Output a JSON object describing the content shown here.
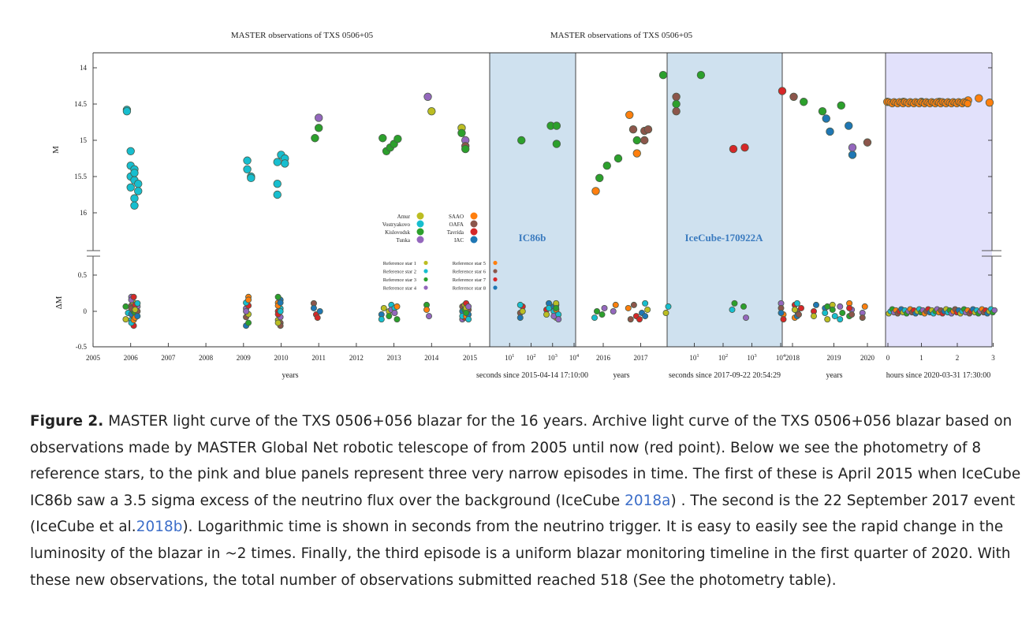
{
  "figure": {
    "title_left": "MASTER observations of TXS 0506+05",
    "title_right": "MASTER observations of TXS 0506+05",
    "ylabel_top": "M",
    "ylabel_bottom": "ΔM",
    "xlabel_years_1": "years",
    "xlabel_seconds_1": "seconds since 2015-04-14 17:10:00",
    "xlabel_years_2": "years",
    "xlabel_seconds_2": "seconds since 2017-09-22 20:54:29",
    "xlabel_years_3": "years",
    "xlabel_hours": "hours since 2020-03-31 17:30:00",
    "band_label_1": "IC86b",
    "band_label_2": "IceCube-170922A",
    "band_colors": {
      "blue": "#cfe1ef",
      "lavender": "#e2e1fb",
      "label": "#3b7bbf"
    },
    "top_y_ticks": [
      "14",
      "14.5",
      "15",
      "15.5",
      "16"
    ],
    "bottom_y_ticks": [
      "0.5",
      "0",
      "-0.5"
    ],
    "x_ticks": [
      "2005",
      "2006",
      "2007",
      "2008",
      "2009",
      "2010",
      "2011",
      "2012",
      "2013",
      "2014",
      "2015",
      "10",
      "1",
      "10",
      "2",
      "10",
      "3",
      "10",
      "4",
      "2016",
      "2017",
      "10",
      "1",
      "10",
      "2",
      "10",
      "3",
      "10",
      "4",
      "2018",
      "2019",
      "2020",
      "0",
      "1",
      "2",
      "3"
    ],
    "legend_observatories": [
      {
        "name": "Amur",
        "color": "#bcbd22"
      },
      {
        "name": "Vostryakovo",
        "color": "#17becf"
      },
      {
        "name": "Kislovodsk",
        "color": "#2ca02c"
      },
      {
        "name": "Tunka",
        "color": "#9467bd"
      },
      {
        "name": "SAAO",
        "color": "#ff7f0e"
      },
      {
        "name": "OAFA",
        "color": "#8c564b"
      },
      {
        "name": "Tavrida",
        "color": "#d62728"
      },
      {
        "name": "IAC",
        "color": "#1f77b4"
      }
    ],
    "legend_reference": [
      {
        "name": "Reference star 1",
        "color": "#bcbd22"
      },
      {
        "name": "Reference star 2",
        "color": "#17becf"
      },
      {
        "name": "Reference star 3",
        "color": "#2ca02c"
      },
      {
        "name": "Reference star 4",
        "color": "#9467bd"
      },
      {
        "name": "Reference star 5",
        "color": "#ff7f0e"
      },
      {
        "name": "Reference star 6",
        "color": "#8c564b"
      },
      {
        "name": "Reference star 7",
        "color": "#d62728"
      },
      {
        "name": "Reference star 8",
        "color": "#1f77b4"
      }
    ]
  },
  "chart_data": {
    "type": "scatter",
    "title": "MASTER observations of TXS 0506+05",
    "ylabel": "M",
    "ylim": [
      16.5,
      13.9
    ],
    "y_inverted": true,
    "light_curve": [
      {
        "x": "2005.9",
        "y": 14.58,
        "obs": "Vostryakovo"
      },
      {
        "x": "2005.9",
        "y": 14.6,
        "obs": "Vostryakovo"
      },
      {
        "x": "2006.0",
        "y": 15.15,
        "obs": "Vostryakovo"
      },
      {
        "x": "2006.0",
        "y": 15.35,
        "obs": "Vostryakovo"
      },
      {
        "x": "2006.0",
        "y": 15.5,
        "obs": "Vostryakovo"
      },
      {
        "x": "2006.0",
        "y": 15.65,
        "obs": "Vostryakovo"
      },
      {
        "x": "2006.1",
        "y": 15.4,
        "obs": "Vostryakovo"
      },
      {
        "x": "2006.1",
        "y": 15.55,
        "obs": "Vostryakovo"
      },
      {
        "x": "2006.1",
        "y": 15.8,
        "obs": "Vostryakovo"
      },
      {
        "x": "2006.1",
        "y": 15.9,
        "obs": "Vostryakovo"
      },
      {
        "x": "2006.1",
        "y": 15.45,
        "obs": "Vostryakovo"
      },
      {
        "x": "2006.2",
        "y": 15.6,
        "obs": "Vostryakovo"
      },
      {
        "x": "2006.2",
        "y": 15.7,
        "obs": "Vostryakovo"
      },
      {
        "x": "2009.1",
        "y": 15.28,
        "obs": "Vostryakovo"
      },
      {
        "x": "2009.1",
        "y": 15.4,
        "obs": "Vostryakovo"
      },
      {
        "x": "2009.2",
        "y": 15.5,
        "obs": "Vostryakovo"
      },
      {
        "x": "2009.2",
        "y": 15.52,
        "obs": "Vostryakovo"
      },
      {
        "x": "2009.9",
        "y": 15.3,
        "obs": "Vostryakovo"
      },
      {
        "x": "2009.9",
        "y": 15.6,
        "obs": "Vostryakovo"
      },
      {
        "x": "2009.9",
        "y": 15.75,
        "obs": "Vostryakovo"
      },
      {
        "x": "2010.0",
        "y": 15.2,
        "obs": "Vostryakovo"
      },
      {
        "x": "2010.1",
        "y": 15.25,
        "obs": "Vostryakovo"
      },
      {
        "x": "2010.1",
        "y": 15.32,
        "obs": "Vostryakovo"
      },
      {
        "x": "2010.9",
        "y": 14.97,
        "obs": "Kislovodsk"
      },
      {
        "x": "2011.0",
        "y": 14.83,
        "obs": "Kislovodsk"
      },
      {
        "x": "2011.0",
        "y": 14.69,
        "obs": "Tunka"
      },
      {
        "x": "2012.7",
        "y": 14.97,
        "obs": "Kislovodsk"
      },
      {
        "x": "2012.8",
        "y": 15.15,
        "obs": "Kislovodsk"
      },
      {
        "x": "2012.9",
        "y": 15.1,
        "obs": "Kislovodsk"
      },
      {
        "x": "2013.0",
        "y": 15.05,
        "obs": "Kislovodsk"
      },
      {
        "x": "2013.1",
        "y": 14.98,
        "obs": "Kislovodsk"
      },
      {
        "x": "2013.9",
        "y": 14.4,
        "obs": "Tunka"
      },
      {
        "x": "2014.0",
        "y": 14.6,
        "obs": "Amur"
      },
      {
        "x": "2014.8",
        "y": 14.83,
        "obs": "Amur"
      },
      {
        "x": "2014.8",
        "y": 14.9,
        "obs": "Kislovodsk"
      },
      {
        "x": "2014.9",
        "y": 15.0,
        "obs": "Tunka"
      },
      {
        "x": "2014.9",
        "y": 15.08,
        "obs": "OAFA"
      },
      {
        "x": "2014.9",
        "y": 15.12,
        "obs": "Kislovodsk"
      },
      {
        "x": "2015.8",
        "y": 15.7,
        "obs": "SAAO"
      },
      {
        "x": "2015.9",
        "y": 15.52,
        "obs": "Kislovodsk"
      },
      {
        "x": "2016.1",
        "y": 15.35,
        "obs": "Kislovodsk"
      },
      {
        "x": "2016.4",
        "y": 15.25,
        "obs": "Kislovodsk"
      },
      {
        "x": "2016.7",
        "y": 14.65,
        "obs": "SAAO"
      },
      {
        "x": "2016.8",
        "y": 14.85,
        "obs": "OAFA"
      },
      {
        "x": "2016.9",
        "y": 15.0,
        "obs": "Kislovodsk"
      },
      {
        "x": "2016.9",
        "y": 15.18,
        "obs": "SAAO"
      },
      {
        "x": "2017.1",
        "y": 14.87,
        "obs": "OAFA"
      },
      {
        "x": "2017.1",
        "y": 15.0,
        "obs": "OAFA"
      },
      {
        "x": "2017.2",
        "y": 14.85,
        "obs": "OAFA"
      },
      {
        "x": "2017.6",
        "y": 14.1,
        "obs": "Kislovodsk"
      },
      {
        "x": "2017.95",
        "y": 14.4,
        "obs": "OAFA"
      },
      {
        "x": "2017.95",
        "y": 14.5,
        "obs": "Kislovodsk"
      },
      {
        "x": "2017.95",
        "y": 14.6,
        "obs": "OAFA"
      },
      {
        "x": "2018.3",
        "y": 14.47,
        "obs": "Kislovodsk"
      },
      {
        "x": "2018.8",
        "y": 14.6,
        "obs": "Kislovodsk"
      },
      {
        "x": "2018.9",
        "y": 14.7,
        "obs": "IAC"
      },
      {
        "x": "2019.0",
        "y": 14.88,
        "obs": "IAC"
      },
      {
        "x": "2019.3",
        "y": 14.52,
        "obs": "Kislovodsk"
      },
      {
        "x": "2019.5",
        "y": 14.8,
        "obs": "IAC"
      },
      {
        "x": "2019.6",
        "y": 15.2,
        "obs": "IAC"
      },
      {
        "x": "2019.6",
        "y": 15.1,
        "obs": "Tunka"
      },
      {
        "x": "2020.0",
        "y": 15.03,
        "obs": "OAFA"
      }
    ],
    "IC86b_window_seconds": [
      {
        "x": 30,
        "y": 15.0,
        "obs": "Kislovodsk"
      },
      {
        "x": 700,
        "y": 14.8,
        "obs": "Kislovodsk"
      },
      {
        "x": 1300,
        "y": 14.8,
        "obs": "Kislovodsk"
      },
      {
        "x": 1300,
        "y": 15.05,
        "obs": "Kislovodsk"
      }
    ],
    "IceCube_170922A_window_seconds": [
      {
        "x": 15,
        "y": 14.1,
        "obs": "Kislovodsk"
      },
      {
        "x": 200,
        "y": 15.12,
        "obs": "Tavrida"
      },
      {
        "x": 500,
        "y": 15.1,
        "obs": "Tavrida"
      },
      {
        "x": 10000,
        "y": 14.32,
        "obs": "Tavrida"
      },
      {
        "x": 25000,
        "y": 14.4,
        "obs": "OAFA"
      }
    ],
    "hours_window_2020": [
      {
        "x": 0.05,
        "y": 14.47,
        "obs": "SAAO"
      },
      {
        "x": 0.5,
        "y": 14.47,
        "obs": "SAAO"
      },
      {
        "x": 1.0,
        "y": 14.47,
        "obs": "SAAO"
      },
      {
        "x": 1.5,
        "y": 14.47,
        "obs": "SAAO"
      },
      {
        "x": 2.3,
        "y": 14.45,
        "obs": "SAAO"
      },
      {
        "x": 2.6,
        "y": 14.42,
        "obs": "SAAO"
      },
      {
        "x": 2.9,
        "y": 14.48,
        "obs": "SAAO"
      }
    ]
  },
  "caption": {
    "label": "Figure 2.",
    "t1": " MASTER light curve of the TXS 0506+056 blazar for the 16 years. Archive light curve of the TXS 0506+056 blazar based on observations made by MASTER Global Net robotic telescope of from 2005 until now (red point). Below we see the photometry of 8 reference stars, to the pink and blue panels represent three very narrow episodes in time. The first of these is April 2015 when IceCube IC86b saw a 3.5 sigma excess of the neutrino flux over the background (IceCube ",
    "cite1": "2018a",
    "t2": ") . The second is the 22 September 2017 event (IceCube et al.",
    "cite2": "2018b",
    "t3": "). Logarithmic time is shown in seconds from the neutrino trigger. It is easy to easily see the rapid change in the luminosity of the blazar in ~2 times. Finally, the third episode is a uniform blazar monitoring timeline in the first quarter of 2020. With these new observations, the total number of observations submitted reached 518 (See the photometry table)."
  }
}
